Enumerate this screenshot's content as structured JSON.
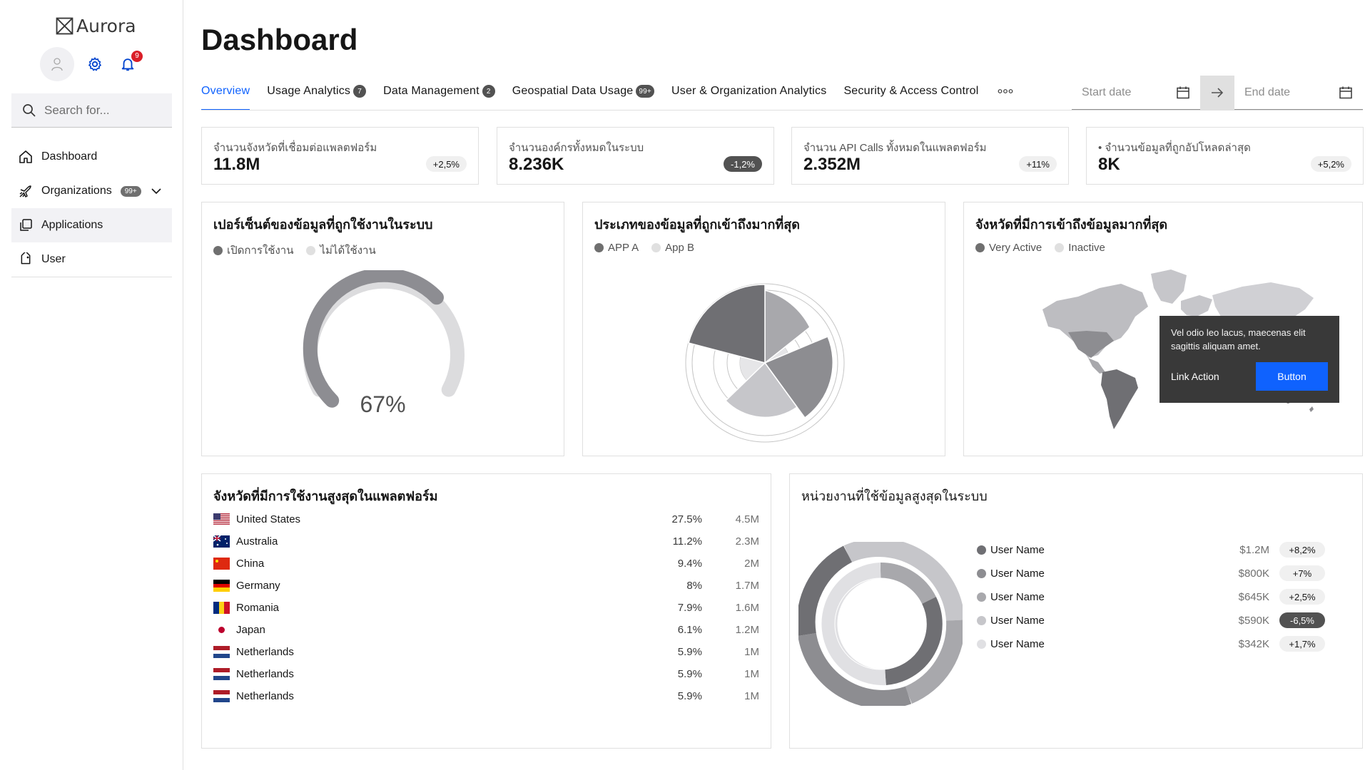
{
  "app": {
    "name": "Aurora",
    "notification_count": "9"
  },
  "search": {
    "placeholder": "Search for..."
  },
  "sidebar": {
    "items": [
      {
        "label": "Dashboard",
        "icon": "home-icon"
      },
      {
        "label": "Organizations",
        "badge": "99+",
        "icon": "plane-icon"
      },
      {
        "label": "Applications",
        "icon": "applications-icon"
      },
      {
        "label": "User",
        "icon": "tag-icon"
      }
    ]
  },
  "page": {
    "title": "Dashboard"
  },
  "tabs": [
    {
      "label": "Overview"
    },
    {
      "label": "Usage Analytics",
      "count": "7"
    },
    {
      "label": "Data Management",
      "count": "2"
    },
    {
      "label": "Geospatial Data Usage",
      "count": "99+"
    },
    {
      "label": "User & Organization Analytics"
    },
    {
      "label": "Security & Access Control"
    }
  ],
  "daterange": {
    "start_placeholder": "Start date",
    "end_placeholder": "End date"
  },
  "kpis": [
    {
      "label": "จำนวนจังหวัดที่เชื่อมต่อแพลตฟอร์ม",
      "value": "11.8M",
      "change": "+2,5%"
    },
    {
      "label": "จำนวนองค์กรทั้งหมดในระบบ",
      "value": "8.236K",
      "change": "-1,2%"
    },
    {
      "label": "จำนวน API Calls ทั้งหมดในแพลตฟอร์ม",
      "value": "2.352M",
      "change": "+11%"
    },
    {
      "label": "•  จำนวนข้อมูลที่ถูกอัปโหลดล่าสุด",
      "value": "8K",
      "change": "+5,2%"
    }
  ],
  "gauge": {
    "title": "เปอร์เซ็นต์ของข้อมูลที่ถูกใช้งานในระบบ",
    "legend": [
      "เปิดการใช้งาน",
      "ไม่ได้ใช้งาน"
    ],
    "value_label": "67%",
    "value": 0.67
  },
  "polar": {
    "title": "ประเภทของข้อมูลที่ถูกเข้าถึงมากที่สุด",
    "legend": [
      "APP A",
      "App B"
    ]
  },
  "map": {
    "title": "จังหวัดที่มีการเข้าถึงข้อมูลมากที่สุด",
    "legend": [
      "Very Active",
      "Inactive"
    ],
    "tooltip": {
      "text": "Vel odio leo lacus, maecenas elit sagittis aliquam amet.",
      "link": "Link Action",
      "button": "Button"
    }
  },
  "top_provinces": {
    "title": "จังหวัดที่มีการใช้งานสูงสุดในแพลตฟอร์ม",
    "rows": [
      {
        "country": "United States",
        "pct": "27.5%",
        "amount": "4.5M",
        "flag": "us"
      },
      {
        "country": "Australia",
        "pct": "11.2%",
        "amount": "2.3M",
        "flag": "au"
      },
      {
        "country": "China",
        "pct": "9.4%",
        "amount": "2M",
        "flag": "cn"
      },
      {
        "country": "Germany",
        "pct": "8%",
        "amount": "1.7M",
        "flag": "de"
      },
      {
        "country": "Romania",
        "pct": "7.9%",
        "amount": "1.6M",
        "flag": "ro"
      },
      {
        "country": "Japan",
        "pct": "6.1%",
        "amount": "1.2M",
        "flag": "jp"
      },
      {
        "country": "Netherlands",
        "pct": "5.9%",
        "amount": "1M",
        "flag": "nl"
      },
      {
        "country": "Netherlands",
        "pct": "5.9%",
        "amount": "1M",
        "flag": "nl"
      },
      {
        "country": "Netherlands",
        "pct": "5.9%",
        "amount": "1M",
        "flag": "nl"
      }
    ]
  },
  "top_units": {
    "title": "หน่วยงานที่ใช้ข้อมูลสูงสุดในระบบ",
    "rows": [
      {
        "name": "User Name",
        "amount": "$1.2M",
        "change": "+8,2%",
        "color": "#6f6f73"
      },
      {
        "name": "User Name",
        "amount": "$800K",
        "change": "+7%",
        "color": "#8d8d91"
      },
      {
        "name": "User Name",
        "amount": "$645K",
        "change": "+2,5%",
        "color": "#a8a8ac"
      },
      {
        "name": "User Name",
        "amount": "$590K",
        "change": "-6,5%",
        "color": "#c6c6ca"
      },
      {
        "name": "User Name",
        "amount": "$342K",
        "change": "+1,7%",
        "color": "#e0e0e3"
      }
    ]
  },
  "colors": {
    "accent": "#0f62fe",
    "alert": "#da1e28",
    "dark": "#393939"
  }
}
